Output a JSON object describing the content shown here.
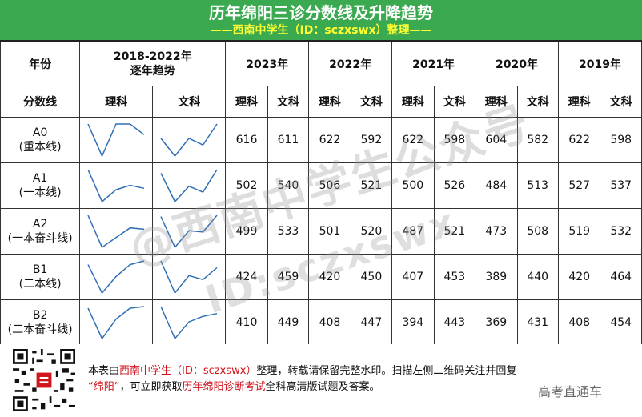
{
  "title": "历年绵阳三诊分数线及升降趋势",
  "subtitle": "——西南中学生（ID：sczxswx）整理——",
  "header": {
    "year_col": "年份",
    "trend_col": [
      "2018-2022年",
      "逐年趋势"
    ],
    "years": [
      "2023年",
      "2022年",
      "2021年",
      "2020年",
      "2019年"
    ],
    "row2_label": "分数线",
    "science": "理科",
    "arts": "文科"
  },
  "rows": [
    {
      "code": "A0",
      "name": "(重本线)",
      "scores": [
        [
          "616",
          "611"
        ],
        [
          "622",
          "592"
        ],
        [
          "622",
          "598"
        ],
        [
          "604",
          "582"
        ],
        [
          "622",
          "598"
        ]
      ],
      "trend_sci": [
        622,
        604,
        622,
        622,
        616
      ],
      "trend_art": [
        598,
        582,
        598,
        592,
        611
      ]
    },
    {
      "code": "A1",
      "name": "(一本线)",
      "scores": [
        [
          "502",
          "540"
        ],
        [
          "506",
          "521"
        ],
        [
          "500",
          "526"
        ],
        [
          "484",
          "513"
        ],
        [
          "527",
          "537"
        ]
      ],
      "trend_sci": [
        527,
        484,
        500,
        506,
        502
      ],
      "trend_art": [
        537,
        513,
        526,
        521,
        540
      ]
    },
    {
      "code": "A2",
      "name": "(一本奋斗线)",
      "scores": [
        [
          "499",
          "533"
        ],
        [
          "501",
          "520"
        ],
        [
          "487",
          "521"
        ],
        [
          "473",
          "508"
        ],
        [
          "519",
          "532"
        ]
      ],
      "trend_sci": [
        519,
        473,
        487,
        501,
        499
      ],
      "trend_art": [
        532,
        508,
        521,
        520,
        533
      ]
    },
    {
      "code": "B1",
      "name": "(二本线)",
      "scores": [
        [
          "424",
          "459"
        ],
        [
          "420",
          "450"
        ],
        [
          "407",
          "453"
        ],
        [
          "389",
          "440"
        ],
        [
          "420",
          "464"
        ]
      ],
      "trend_sci": [
        420,
        389,
        407,
        420,
        424
      ],
      "trend_art": [
        464,
        440,
        453,
        450,
        459
      ]
    },
    {
      "code": "B2",
      "name": "(二本奋斗线)",
      "scores": [
        [
          "410",
          "449"
        ],
        [
          "408",
          "447"
        ],
        [
          "394",
          "443"
        ],
        [
          "369",
          "431"
        ],
        [
          "408",
          "454"
        ]
      ],
      "trend_sci": [
        408,
        369,
        394,
        408,
        410
      ],
      "trend_art": [
        454,
        431,
        443,
        447,
        449
      ]
    }
  ],
  "watermark": {
    "line1": "@西南中学生公众号",
    "line2": "ID:sczxswx"
  },
  "footer": {
    "t1": "本表由",
    "t2": "西南中学生（ID：sczxswx）",
    "t3": "整理，转载请保留完整水印。扫描左侧二维码关注并回复",
    "t4": "“绵阳”",
    "t5": "，可立即获取",
    "t6": "历年绵阳诊断考试",
    "t7": "全科高清版试题及答案。"
  },
  "brand": "高考直通车",
  "colors": {
    "header_green": "#3aa94f",
    "subtitle_yellow": "#ffff33",
    "line_blue": "#2f6fb5",
    "accent_red": "#d0141c"
  }
}
